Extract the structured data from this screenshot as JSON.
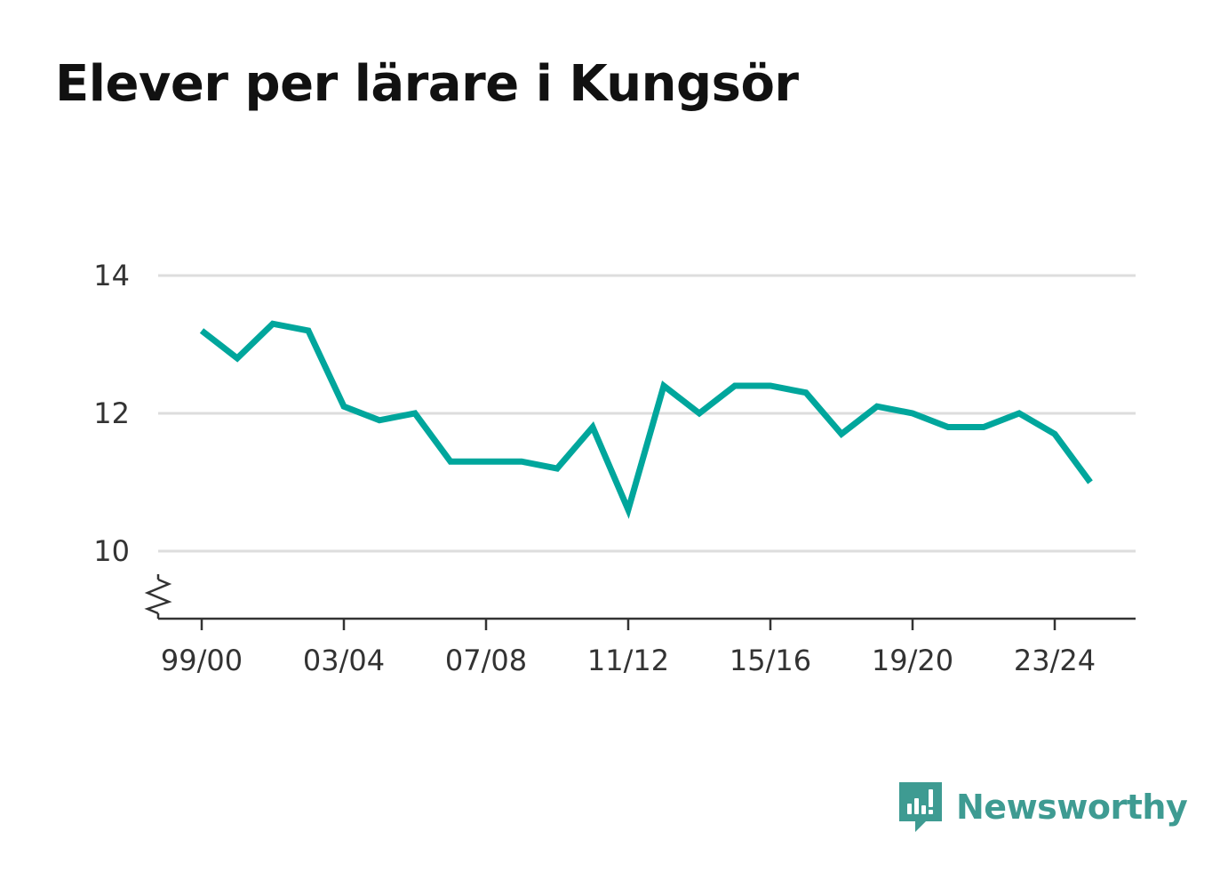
{
  "title": "Elever per lärare i Kungsör",
  "brand": {
    "name": "Newsworthy",
    "icon": "newsworthy-logo-icon",
    "color": "#3e9b92"
  },
  "chart_data": {
    "type": "line",
    "title": "Elever per lärare i Kungsör",
    "xlabel": "",
    "ylabel": "",
    "ylim": [
      9,
      14
    ],
    "yticks": [
      10,
      12,
      14
    ],
    "y_axis_break": true,
    "grid": true,
    "line_color": "#00a69c",
    "x": [
      "99/00",
      "00/01",
      "01/02",
      "02/03",
      "03/04",
      "04/05",
      "05/06",
      "06/07",
      "07/08",
      "08/09",
      "09/10",
      "10/11",
      "11/12",
      "12/13",
      "13/14",
      "14/15",
      "15/16",
      "16/17",
      "17/18",
      "18/19",
      "19/20",
      "20/21",
      "21/22",
      "22/23",
      "23/24",
      "24/25"
    ],
    "xtick_labels": [
      "99/00",
      "03/04",
      "07/08",
      "11/12",
      "15/16",
      "19/20",
      "23/24"
    ],
    "series": [
      {
        "values": [
          13.2,
          12.8,
          13.3,
          13.2,
          12.1,
          11.9,
          12.0,
          11.3,
          11.3,
          11.3,
          11.2,
          11.8,
          10.6,
          12.4,
          12.0,
          12.4,
          12.4,
          12.3,
          11.7,
          12.1,
          12.0,
          11.8,
          11.8,
          12.0,
          11.7,
          11.0
        ]
      }
    ]
  }
}
